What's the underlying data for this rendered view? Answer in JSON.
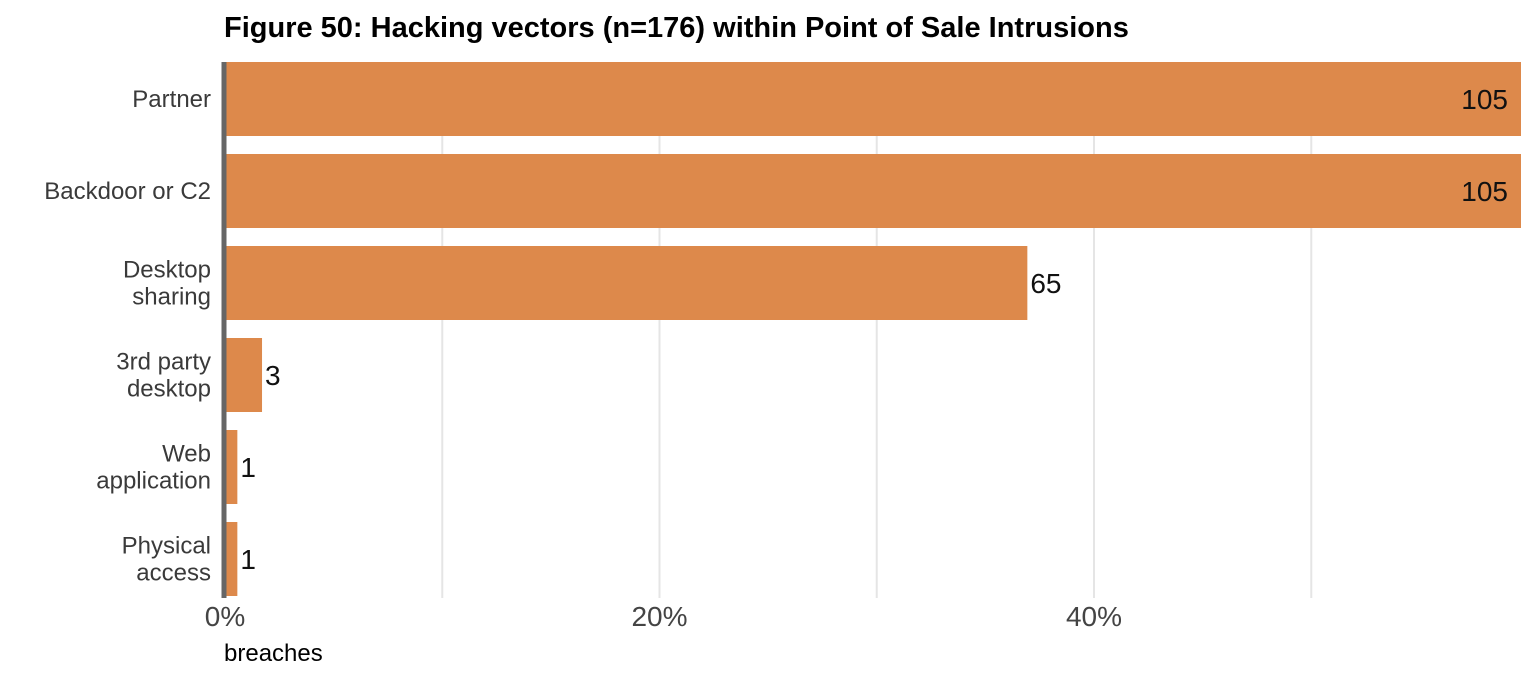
{
  "chart_data": {
    "type": "bar",
    "orientation": "horizontal",
    "title": "Figure 50: Hacking vectors (n=176) within Point of Sale Intrusions",
    "xlabel": "breaches",
    "categories": [
      [
        "Partner"
      ],
      [
        "Backdoor or C2"
      ],
      [
        "Desktop",
        "sharing"
      ],
      [
        "3rd party",
        "desktop"
      ],
      [
        "Web",
        "application"
      ],
      [
        "Physical",
        "access"
      ]
    ],
    "values": [
      105,
      105,
      65,
      3,
      1,
      1
    ],
    "n": 176,
    "xlim_percent": [
      0,
      60
    ],
    "x_ticks": [
      "0%",
      "20%",
      "40%"
    ],
    "x_tick_values": [
      0,
      20,
      40
    ],
    "gridlines_percent": [
      10,
      20,
      30,
      40,
      50
    ],
    "grid": true,
    "colors": {
      "bar": "#DD894B",
      "axis": "#666666",
      "grid": "#E5E5E5"
    }
  }
}
